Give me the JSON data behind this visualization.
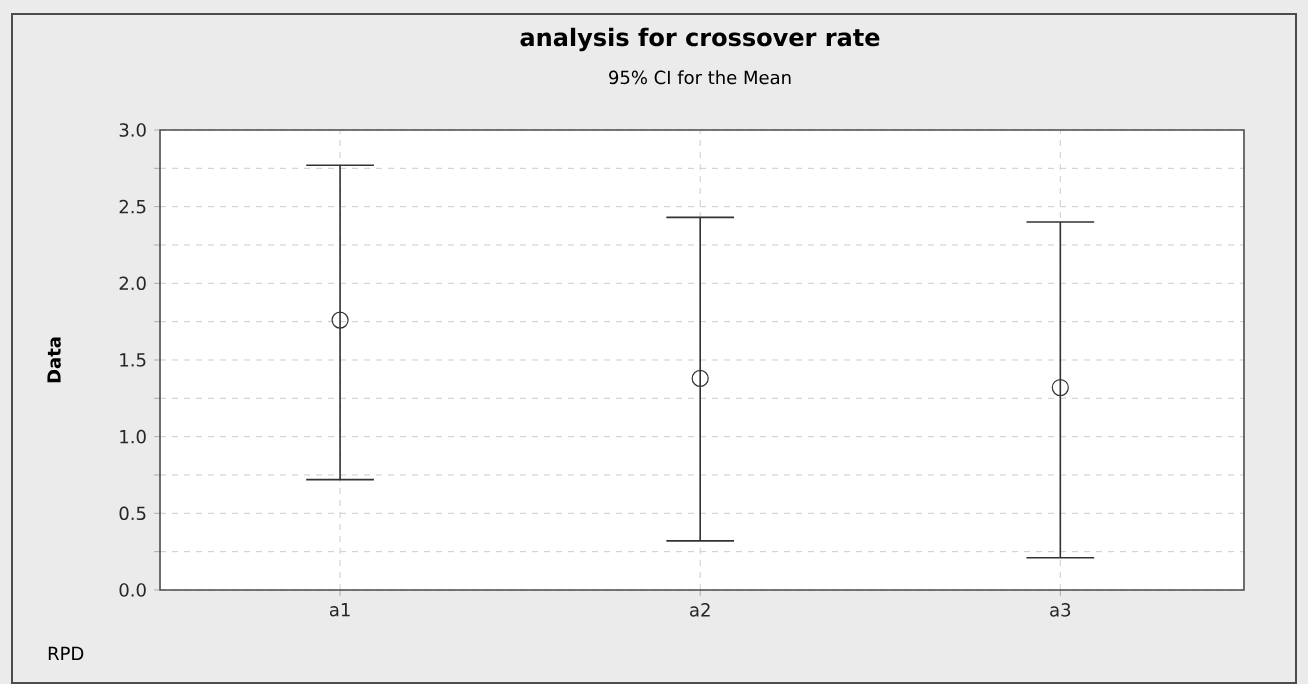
{
  "chart_data": {
    "type": "scatter",
    "title": "analysis for crossover rate",
    "subtitle": "95% CI for the Mean",
    "ylabel": "Data",
    "categories": [
      "a1",
      "a2",
      "a3"
    ],
    "values": [
      1.76,
      1.38,
      1.32
    ],
    "errors": [
      [
        0.72,
        2.77
      ],
      [
        0.32,
        2.43
      ],
      [
        0.21,
        2.4
      ]
    ],
    "color": "#333333",
    "marker": "circle",
    "grid": true,
    "ylim": [
      0,
      3.0
    ],
    "yticks": [
      {
        "value": 0,
        "label": "0.0"
      },
      {
        "value": 0.25,
        "label": null
      },
      {
        "value": 0.5,
        "label": "0.5"
      },
      {
        "value": 0.75,
        "label": null
      },
      {
        "value": 1.0,
        "label": "1.0"
      },
      {
        "value": 1.25,
        "label": null
      },
      {
        "value": 1.5,
        "label": "1.5"
      },
      {
        "value": 1.75,
        "label": null
      },
      {
        "value": 2.0,
        "label": "2.0"
      },
      {
        "value": 2.25,
        "label": null
      },
      {
        "value": 2.5,
        "label": "2.5"
      },
      {
        "value": 2.75,
        "label": null
      },
      {
        "value": 3.0,
        "label": "3.0"
      }
    ],
    "annotations": [
      "RPD"
    ]
  }
}
